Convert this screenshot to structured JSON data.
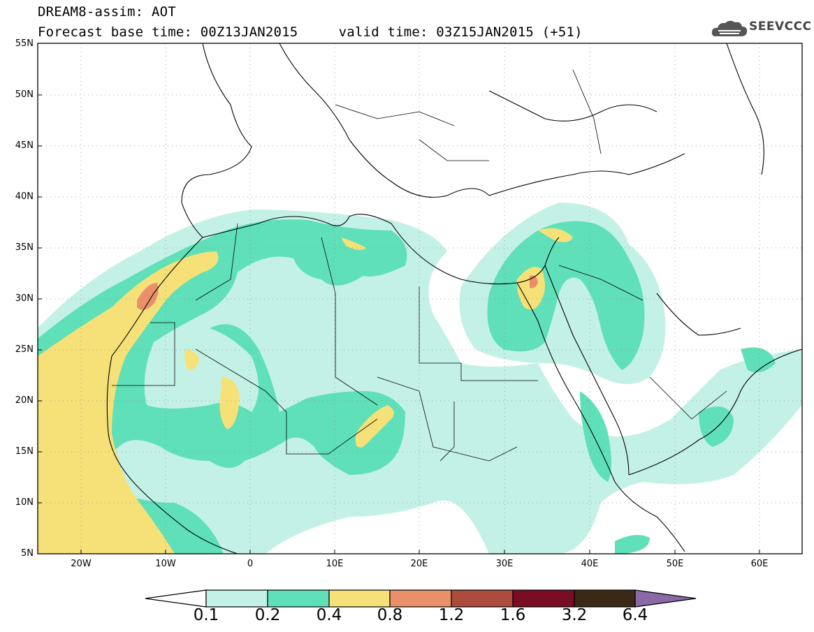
{
  "title": {
    "line1": "DREAM8-assim: AOT",
    "line2": "Forecast base time: 00Z13JAN2015     valid time: 03Z15JAN2015 (+51)"
  },
  "logo": {
    "text": "SEEVCCC",
    "icon": "cloud-logo-icon"
  },
  "map": {
    "lat_ticks": [
      "55N",
      "50N",
      "45N",
      "40N",
      "35N",
      "30N",
      "25N",
      "20N",
      "15N",
      "10N",
      "5N"
    ],
    "lon_ticks": [
      "20W",
      "10W",
      "0",
      "10E",
      "20E",
      "30E",
      "40E",
      "50E",
      "60E"
    ],
    "extent": {
      "lon_min": -25,
      "lon_max": 65,
      "lat_min": 5,
      "lat_max": 55
    }
  },
  "colorbar": {
    "labels": [
      "0.1",
      "0.2",
      "0.4",
      "0.8",
      "1.2",
      "1.6",
      "3.2",
      "6.4"
    ],
    "colors": [
      "#ffffff",
      "#c4f1e6",
      "#5fe0b8",
      "#f5e178",
      "#e9906b",
      "#ac4c3c",
      "#7a0d24",
      "#3a2914",
      "#8a6aa6"
    ]
  }
}
